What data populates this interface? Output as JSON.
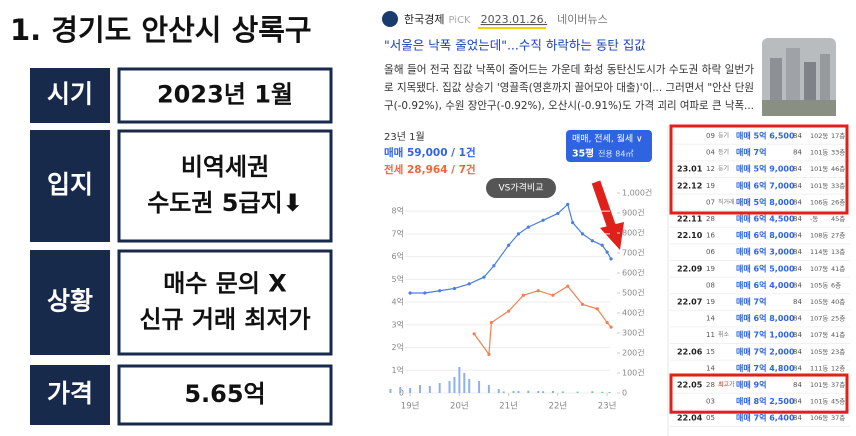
{
  "left": {
    "title": "1. 경기도 안산시 상록구",
    "rows": [
      {
        "label": "시기",
        "lines": [
          "2023년 1월"
        ]
      },
      {
        "label": "입지",
        "lines": [
          "비역세권",
          "수도권 5급지⬇"
        ]
      },
      {
        "label": "상황",
        "lines": [
          "매수 문의 X",
          "신규 거래 최저가"
        ]
      },
      {
        "label": "가격",
        "lines": [
          "5.65억"
        ]
      }
    ]
  },
  "news": {
    "source": "한국경제",
    "pick": "PiCK",
    "date": "2023.01.26.",
    "portal": "네이버뉴스",
    "headline": "\"서울은 낙폭 줄었는데\"...수직 하락하는 동탄 집값",
    "body": [
      "올해 들어 전국 집값 낙폭이 줄어드는 가운데 화성 동탄신도시가 수도권 하락 일번가",
      "로 지목됐다. 집값 상승기 '영끌족(영혼까지 끌어모아 대출)'이... 그러면서 \"안산 단원",
      "구(-0.92%), 수원 장안구(-0.92%), 오산시(-0.91%)도 가격 괴리 여파로 큰 낙폭..."
    ]
  },
  "chart": {
    "type": "line",
    "month": "23년 1월",
    "sale": "매매 59,000 / 1건",
    "jeonse": "전세 28,964 / 7건",
    "filter": "매매, 전세, 월세 ∨",
    "size": "35평",
    "area": "전용 84㎡",
    "compare": "VS가격비교",
    "xlim": [
      2018.49,
      2023.16
    ],
    "xticks": [
      {
        "value": 2019,
        "label": "19년"
      },
      {
        "value": 2020,
        "label": "20년"
      },
      {
        "value": 2021,
        "label": "21년"
      },
      {
        "value": 2022,
        "label": "22년"
      },
      {
        "value": 2023,
        "label": "23년"
      }
    ],
    "ylim": [
      0,
      8.8
    ],
    "yticks": [
      0,
      {
        "value": 1,
        "label": "1억"
      },
      {
        "value": 2,
        "label": "2억"
      },
      {
        "value": 3,
        "label": "3억"
      },
      {
        "value": 4,
        "label": "4억"
      },
      {
        "value": 5,
        "label": "5억"
      },
      {
        "value": 6,
        "label": "6억"
      },
      {
        "value": 7,
        "label": "7억"
      },
      {
        "value": 8,
        "label": "8억"
      }
    ],
    "y2lim": [
      0,
      1000
    ],
    "y2ticks": [
      0,
      {
        "value": 100,
        "label": "100건"
      },
      {
        "value": 200,
        "label": "200건"
      },
      {
        "value": 300,
        "label": "300건"
      },
      {
        "value": 400,
        "label": "400건"
      },
      {
        "value": 500,
        "label": "500건"
      },
      {
        "value": 600,
        "label": "600건"
      },
      {
        "value": 700,
        "label": "700건"
      },
      {
        "value": 800,
        "label": "800건"
      },
      {
        "value": 900,
        "label": "900건"
      },
      {
        "value": {
          "value": 1000,
          "label": "1,000건"
        }
      }
    ],
    "grid": true,
    "series": [
      {
        "color": "#4a7fe0",
        "x": [
          2019.0,
          2019.3,
          2019.6,
          2019.9,
          2020.2,
          2020.5,
          2020.7,
          2021.0,
          2021.2,
          2021.4,
          2021.7,
          2022.0,
          2022.2,
          2022.3,
          2022.5,
          2022.7,
          2022.9,
          2023.0,
          2023.08
        ],
        "values": [
          4.4,
          4.4,
          4.5,
          4.6,
          4.8,
          5.1,
          5.6,
          6.5,
          7.0,
          7.3,
          7.6,
          7.9,
          8.3,
          7.5,
          7.0,
          6.7,
          6.5,
          6.2,
          5.9
        ]
      },
      {
        "color": "#f08050",
        "x": [
          2020.3,
          2020.6,
          2020.65,
          2021.0,
          2021.3,
          2021.6,
          2021.9,
          2022.2,
          2022.5,
          2022.8,
          2023.0,
          2023.08
        ],
        "values": [
          2.6,
          1.7,
          3.1,
          3.6,
          4.3,
          4.5,
          4.3,
          4.7,
          3.9,
          3.7,
          3.1,
          2.9
        ]
      }
    ],
    "bars": [
      {
        "color": "#8fb0f0",
        "axis": "y2",
        "x": [
          2018.6,
          2018.8,
          2019.0,
          2019.2,
          2019.4,
          2019.6,
          2019.8,
          2019.9,
          2020.0,
          2020.1,
          2020.2,
          2020.4,
          2020.6,
          2020.8,
          2021.2,
          2021.6
        ],
        "values": [
          20,
          30,
          25,
          40,
          35,
          50,
          60,
          80,
          130,
          100,
          70,
          60,
          40,
          20,
          10,
          10
        ]
      },
      {
        "color": "#7ac89a",
        "axis": "y2",
        "x": [
          2020.9,
          2021.1,
          2021.4,
          2021.7,
          2021.9,
          2022.1,
          2022.4,
          2022.7,
          2022.9,
          2023.05
        ],
        "values": [
          8,
          10,
          12,
          9,
          10,
          8,
          7,
          9,
          6,
          5
        ]
      }
    ]
  },
  "table": {
    "rows": [
      [
        "",
        "09",
        "등기",
        "매매 5억 6,500",
        "84",
        "102동",
        "17층"
      ],
      [
        "",
        "04",
        "등기",
        "매매 7억",
        "84",
        "101동",
        "33층"
      ],
      [
        "23.01",
        "12",
        "등기",
        "매매 5억 9,000",
        "84",
        "101동",
        "46층"
      ],
      [
        "22.12",
        "19",
        "",
        "매매 6억 7,000",
        "84",
        "101동",
        "33층"
      ],
      [
        "",
        "07",
        "직거래",
        "매매 5억 8,000",
        "84",
        "106동",
        "26층"
      ],
      [
        "22.11",
        "28",
        "",
        "매매 6억 4,500",
        "84",
        "-동",
        "45층"
      ],
      [
        "22.10",
        "16",
        "",
        "매매 6억 8,000",
        "84",
        "108동",
        "27층"
      ],
      [
        "",
        "06",
        "",
        "매매 6억 3,000",
        "84",
        "114동",
        "13층"
      ],
      [
        "22.09",
        "19",
        "",
        "매매 6억 5,000",
        "84",
        "107동",
        "41층"
      ],
      [
        "",
        "08",
        "",
        "매매 6억 4,000",
        "84",
        "105동",
        "6층"
      ],
      [
        "22.07",
        "19",
        "",
        "매매 7억",
        "84",
        "105동",
        "40층"
      ],
      [
        "",
        "14",
        "",
        "매매 6억 8,000",
        "84",
        "107동",
        "25층"
      ],
      [
        "",
        "11",
        "취소",
        "매매 7억 1,000",
        "84",
        "107동",
        "41층"
      ],
      [
        "22.06",
        "15",
        "",
        "매매 7억 2,000",
        "84",
        "105동",
        "23층"
      ],
      [
        "",
        "14",
        "",
        "매매 7억 4,800",
        "84",
        "111동",
        "12층"
      ],
      [
        "22.05",
        "28",
        "최고가",
        "매매 9억",
        "84",
        "101동",
        "37층"
      ],
      [
        "",
        "03",
        "",
        "매매 8억 2,500",
        "84",
        "101동",
        "45층"
      ],
      [
        "22.04",
        "05",
        "",
        "매매 7억 6,400",
        "84",
        "106동",
        "37층"
      ]
    ]
  }
}
